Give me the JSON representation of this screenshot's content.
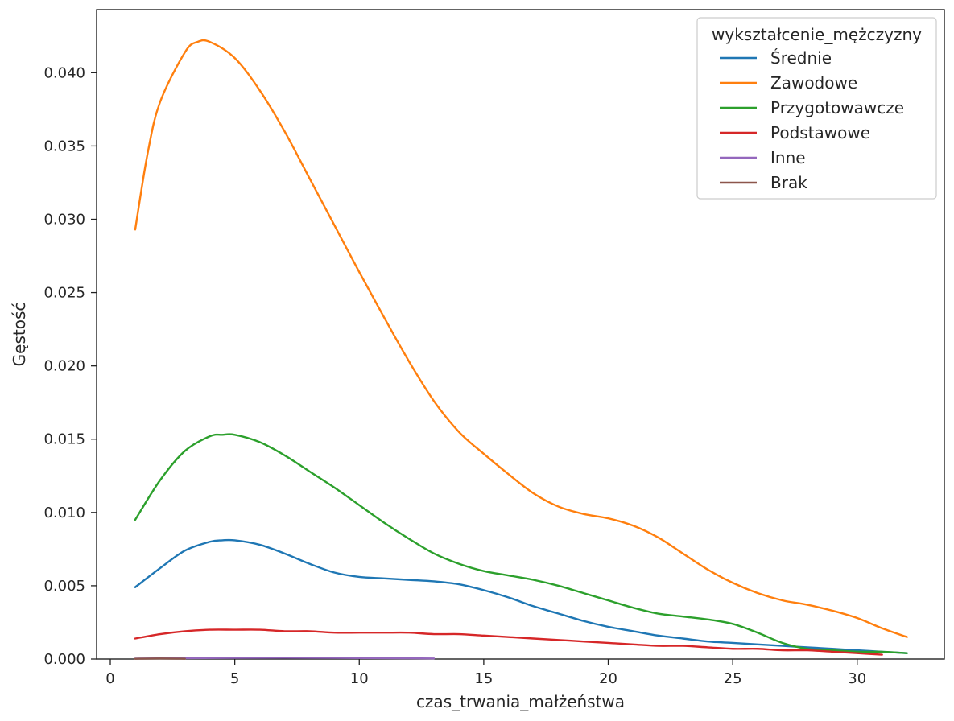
{
  "chart_data": {
    "type": "line",
    "title": "",
    "xlabel": "czas_trwania_małżeństwa",
    "ylabel": "Gęstość",
    "xlim": [
      -0.55,
      33.5
    ],
    "ylim": [
      0,
      0.0443
    ],
    "xticks": [
      0,
      5,
      10,
      15,
      20,
      25,
      30
    ],
    "xtick_labels": [
      "0",
      "5",
      "10",
      "15",
      "20",
      "25",
      "30"
    ],
    "yticks": [
      0,
      0.005,
      0.01,
      0.015,
      0.02,
      0.025,
      0.03,
      0.035,
      0.04
    ],
    "ytick_labels": [
      "0.000",
      "0.005",
      "0.010",
      "0.015",
      "0.020",
      "0.025",
      "0.030",
      "0.035",
      "0.040"
    ],
    "grid": false,
    "legend": {
      "title": "wykształcenie_mężczyzny",
      "placement": "top-right"
    },
    "series": [
      {
        "name": "Średnie",
        "color": "#1f77b4",
        "x": [
          1,
          2,
          3,
          4,
          4.5,
          5,
          6,
          7,
          8,
          9,
          10,
          11,
          12,
          13,
          14,
          15,
          16,
          17,
          18,
          19,
          20,
          21,
          22,
          23,
          24,
          25,
          26,
          27,
          28,
          29,
          30,
          31,
          32
        ],
        "y": [
          0.0049,
          0.0062,
          0.0074,
          0.008,
          0.0081,
          0.0081,
          0.0078,
          0.0072,
          0.0065,
          0.0059,
          0.0056,
          0.0055,
          0.0054,
          0.0053,
          0.0051,
          0.0047,
          0.0042,
          0.0036,
          0.0031,
          0.0026,
          0.0022,
          0.0019,
          0.0016,
          0.0014,
          0.0012,
          0.0011,
          0.001,
          0.0009,
          0.0008,
          0.0007,
          0.0006,
          0.0005,
          0.0004
        ]
      },
      {
        "name": "Zawodowe",
        "color": "#ff7f0e",
        "x": [
          1,
          1.5,
          2,
          3,
          3.5,
          4,
          5,
          6,
          7,
          8,
          9,
          10,
          11,
          12,
          13,
          14,
          15,
          16,
          17,
          18,
          19,
          20,
          21,
          22,
          23,
          24,
          25,
          26,
          27,
          28,
          29,
          30,
          31,
          32
        ],
        "y": [
          0.0293,
          0.0345,
          0.038,
          0.0414,
          0.0421,
          0.0421,
          0.041,
          0.0388,
          0.036,
          0.0328,
          0.0296,
          0.0264,
          0.0233,
          0.0203,
          0.0176,
          0.0155,
          0.014,
          0.0126,
          0.0113,
          0.0104,
          0.0099,
          0.0096,
          0.0091,
          0.0083,
          0.0072,
          0.0061,
          0.0052,
          0.0045,
          0.004,
          0.0037,
          0.0033,
          0.0028,
          0.0021,
          0.0015
        ]
      },
      {
        "name": "Przygotowawcze",
        "color": "#2ca02c",
        "x": [
          1,
          2,
          3,
          4,
          4.5,
          5,
          6,
          7,
          8,
          9,
          10,
          11,
          12,
          13,
          14,
          15,
          16,
          17,
          18,
          19,
          20,
          21,
          22,
          23,
          24,
          25,
          26,
          27,
          28,
          29,
          30,
          31,
          32
        ],
        "y": [
          0.0095,
          0.0122,
          0.0142,
          0.0152,
          0.0153,
          0.0153,
          0.0148,
          0.0139,
          0.0128,
          0.0117,
          0.0105,
          0.0093,
          0.0082,
          0.0072,
          0.0065,
          0.006,
          0.0057,
          0.0054,
          0.005,
          0.0045,
          0.004,
          0.0035,
          0.0031,
          0.0029,
          0.0027,
          0.0024,
          0.0018,
          0.0011,
          0.0007,
          0.0006,
          0.0005,
          0.0005,
          0.0004
        ]
      },
      {
        "name": "Podstawowe",
        "color": "#d62728",
        "x": [
          1,
          2,
          3,
          4,
          5,
          6,
          7,
          8,
          9,
          10,
          11,
          12,
          13,
          14,
          15,
          16,
          17,
          18,
          19,
          20,
          21,
          22,
          23,
          24,
          25,
          26,
          27,
          28,
          29,
          30,
          31
        ],
        "y": [
          0.0014,
          0.0017,
          0.0019,
          0.002,
          0.002,
          0.002,
          0.0019,
          0.0019,
          0.0018,
          0.0018,
          0.0018,
          0.0018,
          0.0017,
          0.0017,
          0.0016,
          0.0015,
          0.0014,
          0.0013,
          0.0012,
          0.0011,
          0.001,
          0.0009,
          0.0009,
          0.0008,
          0.0007,
          0.0007,
          0.0006,
          0.0006,
          0.0005,
          0.0004,
          0.0003
        ]
      },
      {
        "name": "Inne",
        "color": "#9467bd",
        "x": [
          1,
          3,
          5,
          7,
          9,
          11,
          13
        ],
        "y": [
          3e-05,
          6e-05,
          8e-05,
          9e-05,
          8e-05,
          6e-05,
          4e-05
        ]
      },
      {
        "name": "Brak",
        "color": "#8c564b",
        "x": [
          1,
          2,
          3
        ],
        "y": [
          2e-05,
          4e-05,
          2e-05
        ]
      }
    ]
  }
}
